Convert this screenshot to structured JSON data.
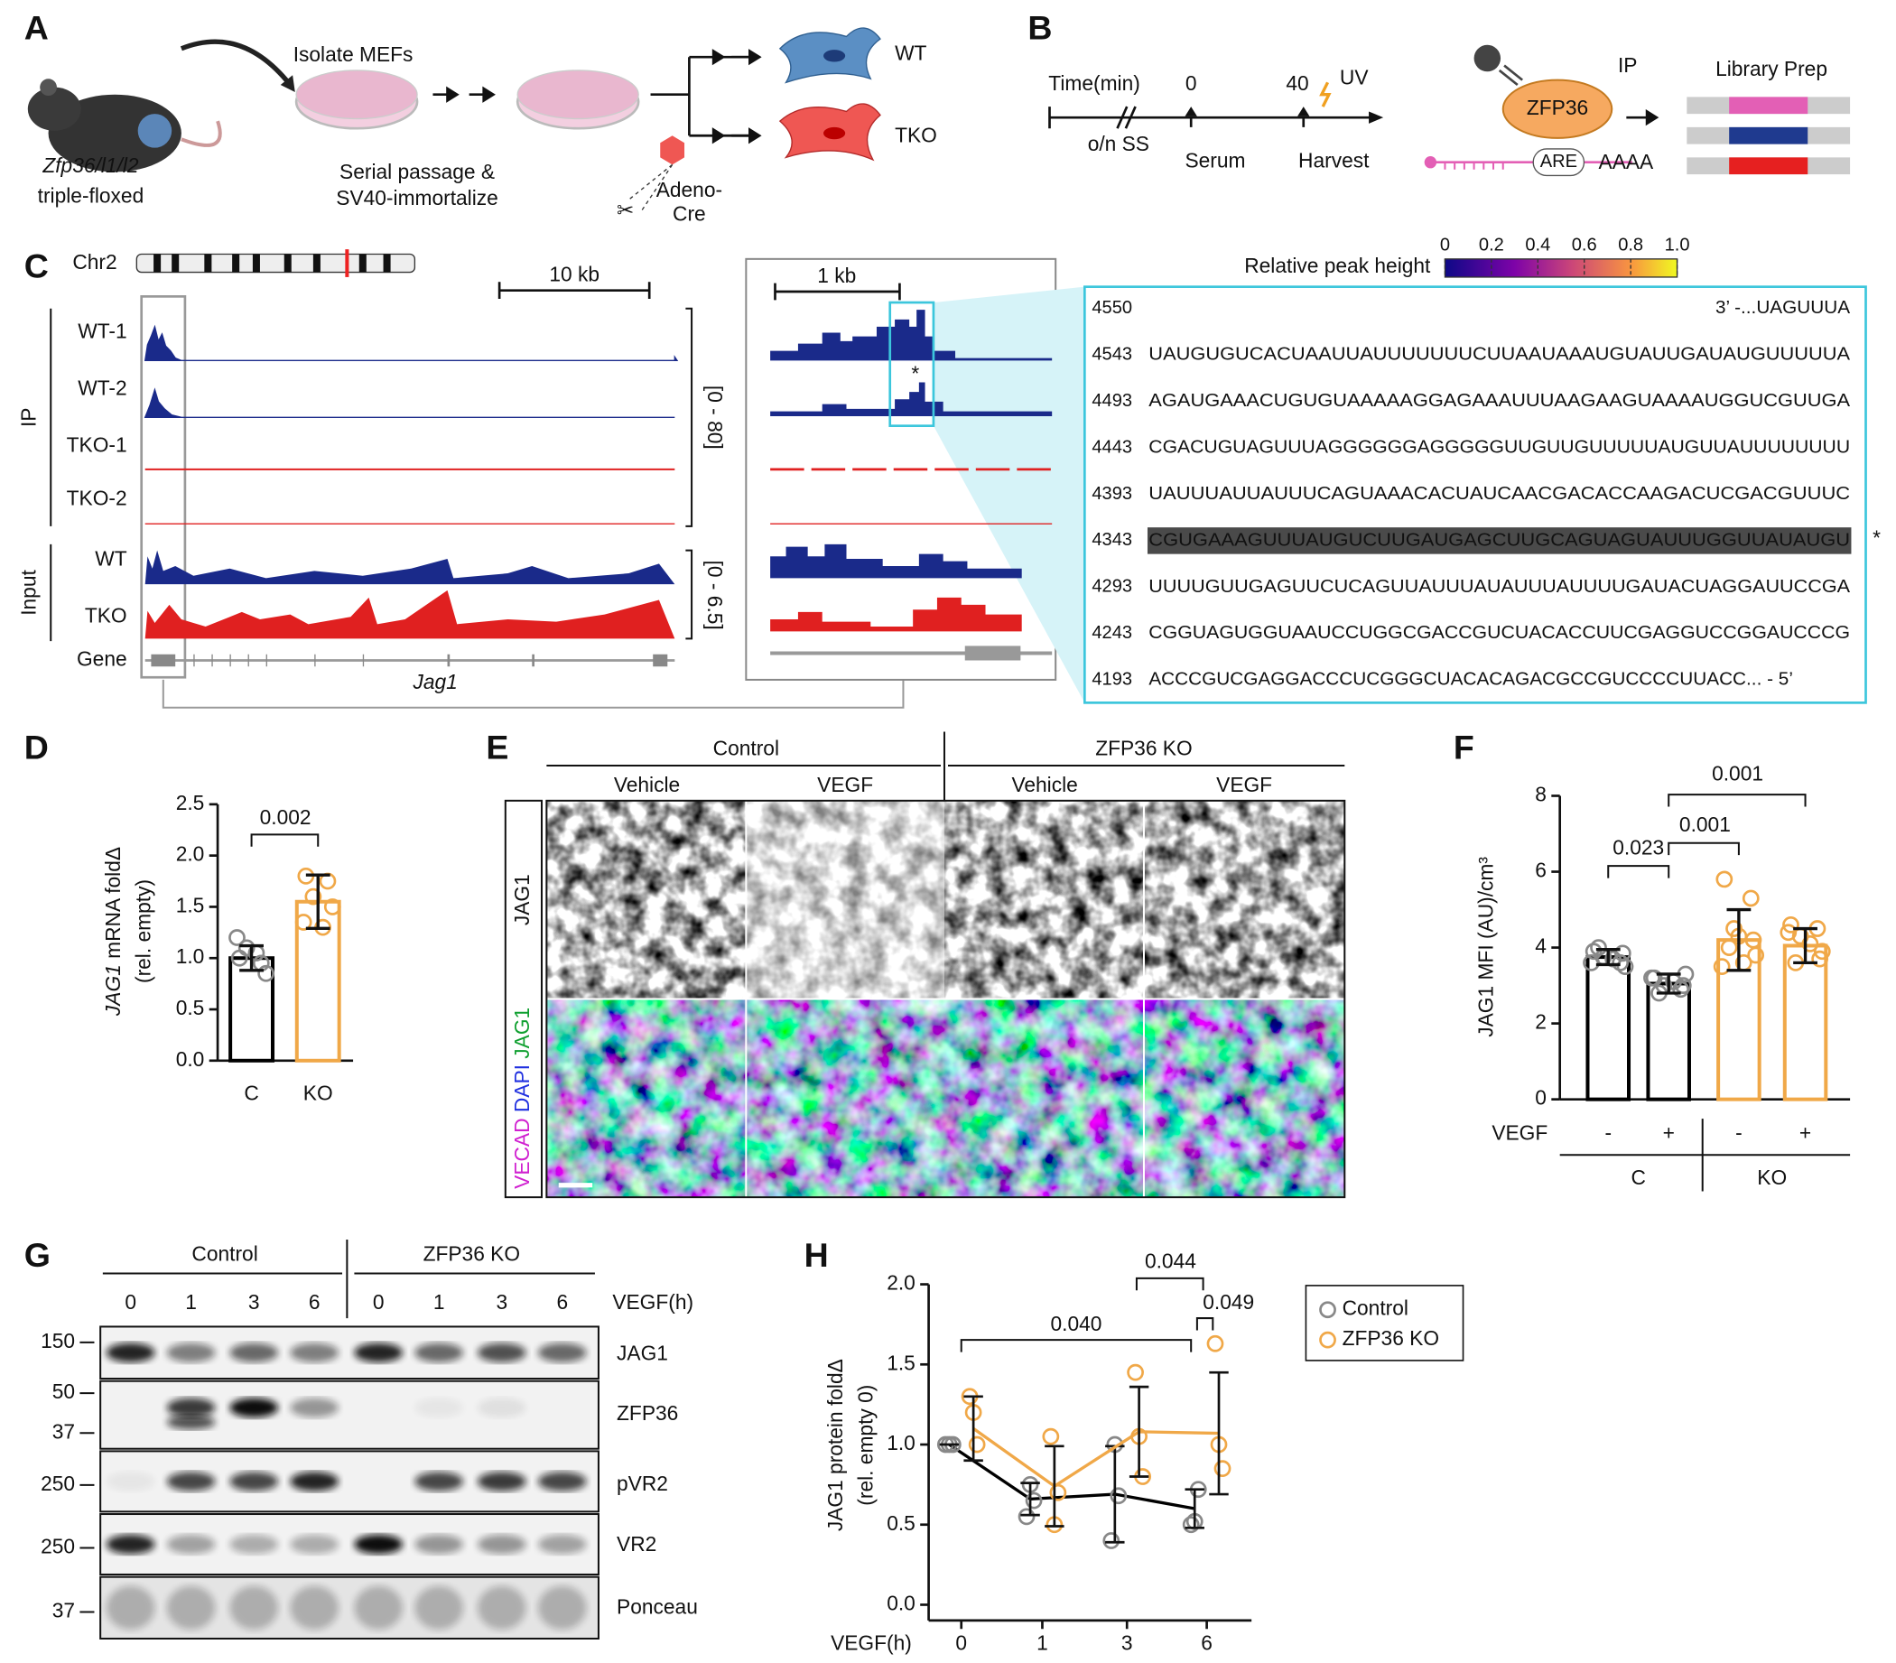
{
  "panel_letters": [
    "A",
    "B",
    "C",
    "D",
    "E",
    "F",
    "G",
    "H"
  ],
  "panel_a": {
    "mouse_line1": "Zfp36/l1/l2",
    "mouse_line2": "triple-floxed",
    "isolate": "Isolate MEFs",
    "passage1": "Serial passage &",
    "passage2": "SV40-immortalize",
    "adeno": "Adeno-",
    "cre": "Cre",
    "wt": "WT",
    "tko": "TKO"
  },
  "panel_b": {
    "time": "Time(min)",
    "t_start": 0,
    "t_harvest": 40,
    "uv": "UV",
    "starve": "o/n SS",
    "serum": "Serum",
    "harvest": "Harvest",
    "protein": "ZFP36",
    "are": "ARE",
    "polya": "AAAA",
    "ip": "IP",
    "library": "Library Prep"
  },
  "panel_c": {
    "chromosome": "Chr2",
    "scale_wide": "10 kb",
    "scale_zoom": "1 kb",
    "group_ip": "IP",
    "group_input": "Input",
    "tracks": [
      "WT-1",
      "WT-2",
      "TKO-1",
      "TKO-2",
      "WT",
      "TKO"
    ],
    "range_ip": "[0 - 80]",
    "range_input": "[0 - 6.5]",
    "gene_label": "Gene",
    "gene": "Jag1",
    "colorbar_title": "Relative peak height",
    "colorbar_ticks": [
      0,
      0.2,
      0.4,
      0.6,
      0.8,
      {
        "value": 1,
        "label": "1.0"
      }
    ],
    "star": "*",
    "sequence": [
      {
        "position": 4550,
        "text": "3’ -...UAGUUUA",
        "color": "#6a2c91"
      },
      {
        "position": 4543,
        "text": "UAUGUGUCACUAAUUAUUUUUUUCUUAAUAAAUGUAUUGAUAUGUUUUUA",
        "color": "#6a2c91"
      },
      {
        "position": 4493,
        "text": "AGAUGAAACUGUGUAAAAAGGAGAAAUUUAAGAAGUAAAAUGGUCGUUGA",
        "color": "#e6336f"
      },
      {
        "position": 4443,
        "text": "CGACUGUAGUUUAGGGGGGAGGGGGUUGUUGUUUUUAUGUUAUUUUUUUU",
        "color": "#e6336f"
      },
      {
        "position": 4393,
        "text": "UAUUUAUUAUUUCAGUAAACACUAUCAACGACACCAAGACUCGACGUUUC",
        "color": "#e6336f"
      },
      {
        "position": 4343,
        "text": "CGUGAAAGUUUAUGUCUUGAUGAGCUUGCAGUAGUAUUUGGUUAUAUGU",
        "color": "#ffff00",
        "highlight": "#4a4a4a"
      },
      {
        "position": 4293,
        "text": "UUUUGUUGAGUUCUCAGUUAUUUAUAUUUAUUUUGAUACUAGGAUUCCGA",
        "color": "#f06a2a"
      },
      {
        "position": 4243,
        "text": "CGGUAGUGGUAAUCCUGGCGACCGUCUACACCUUCGAGGUCCGGAUCCCG",
        "color": "#6a2c91"
      },
      {
        "position": 4193,
        "text": "ACCCGUCGAGGACCCUCGGGCUACACAGACGCCGUCCCCUUACC... - 5’",
        "color": "#6a2c91"
      }
    ]
  },
  "panel_e": {
    "control": "Control",
    "ko": "ZFP36 KO",
    "conditions": [
      "Vehicle",
      "VEGF",
      "Vehicle",
      "VEGF"
    ],
    "row_top": "JAG1",
    "stain_vecad": "VECAD",
    "stain_dapi": "DAPI",
    "stain_jag1": "JAG1"
  },
  "panel_g": {
    "control": "Control",
    "ko": "ZFP36 KO",
    "times": [
      0,
      1,
      3,
      6,
      0,
      1,
      3,
      6
    ],
    "time_label": "VEGF(h)",
    "markers": [
      150,
      50,
      37,
      250,
      250,
      37
    ],
    "blots": [
      "JAG1",
      "ZFP36",
      "pVR2",
      "VR2",
      "Ponceau"
    ]
  },
  "chart_data": [
    {
      "type": "bar",
      "y_label_italic": "JAG1",
      "y_label": " mRNA foldΔ",
      "y_label_2": "(rel. empty)",
      "categories": [
        "C",
        "KO"
      ],
      "values": [
        1.0,
        1.55
      ],
      "errors": [
        0.12,
        0.26
      ],
      "points": [
        [
          1.0,
          0.95,
          1.1,
          0.85,
          1.2,
          1.05
        ],
        [
          1.8,
          1.75,
          1.6,
          1.5,
          1.35,
          1.3
        ]
      ],
      "colors": [
        "#000000",
        "#f0a848"
      ],
      "point_colors": [
        "#888888",
        "#f0a848"
      ],
      "ylim": [
        0,
        2.5
      ],
      "yticks": [
        {
          "value": 0,
          "label": "0.0"
        },
        0.5,
        {
          "value": 1,
          "label": "1.0"
        },
        1.5,
        {
          "value": 2,
          "label": "2.0"
        },
        2.5
      ],
      "annotations": [
        "0.002"
      ]
    },
    {
      "type": "bar",
      "y_label": "JAG1 MFI (AU)/cm³",
      "x_row_label": "VEGF",
      "categories": [
        "-",
        "+",
        "-",
        "+"
      ],
      "groups": [
        "C",
        "KO"
      ],
      "values": [
        3.75,
        3.05,
        4.2,
        4.05
      ],
      "errors": [
        0.2,
        0.25,
        0.8,
        0.45
      ],
      "points": [
        [
          3.9,
          3.6,
          3.75,
          3.5,
          4.0,
          3.7,
          3.85,
          3.6
        ],
        [
          3.2,
          2.9,
          3.0,
          3.3,
          2.8,
          3.1,
          3.0,
          3.2
        ],
        [
          5.8,
          5.3,
          4.5,
          3.8,
          4.0,
          3.6,
          4.2,
          3.5,
          4.3
        ],
        [
          4.6,
          4.5,
          4.3,
          3.9,
          3.6,
          4.1,
          3.7,
          4.4
        ]
      ],
      "colors": [
        "#000000",
        "#000000",
        "#f0a848",
        "#f0a848"
      ],
      "point_colors": [
        "#888888",
        "#888888",
        "#f0a848",
        "#f0a848"
      ],
      "ylim": [
        0,
        8
      ],
      "yticks": [
        0,
        2,
        4,
        6,
        8
      ],
      "annotations": [
        "0.023",
        "0.001",
        "0.001"
      ]
    },
    {
      "type": "line",
      "y_label": "JAG1 protein foldΔ",
      "y_label_2": "(rel. empty 0)",
      "x_label": "VEGF(h)",
      "categories": [
        0,
        1,
        3,
        6
      ],
      "series": [
        {
          "name": "Control",
          "color": "#000000",
          "point_color": "#888888",
          "values": [
            1.0,
            0.66,
            0.69,
            0.6
          ],
          "errors": [
            0.0,
            0.1,
            0.3,
            0.12
          ],
          "points": [
            [
              1.0,
              1.0,
              1.0
            ],
            [
              0.55,
              0.75,
              0.65
            ],
            [
              0.4,
              1.0,
              0.68
            ],
            [
              0.5,
              0.52,
              0.72
            ]
          ]
        },
        {
          "name": "ZFP36 KO",
          "color": "#f0a848",
          "point_color": "#f0a848",
          "values": [
            1.1,
            0.74,
            1.08,
            1.07
          ],
          "errors": [
            0.2,
            0.25,
            0.28,
            0.38
          ],
          "points": [
            [
              1.3,
              1.2,
              1.0
            ],
            [
              1.05,
              0.5,
              0.7
            ],
            [
              1.45,
              1.05,
              0.8
            ],
            [
              1.63,
              1.0,
              0.85
            ]
          ]
        }
      ],
      "ylim": [
        0,
        2
      ],
      "yticks": [
        {
          "value": 0,
          "label": "0.0"
        },
        0.5,
        {
          "value": 1,
          "label": "1.0"
        },
        1.5,
        {
          "value": 2,
          "label": "2.0"
        }
      ],
      "annotations": [
        "0.040",
        "0.044",
        "0.049"
      ]
    }
  ]
}
